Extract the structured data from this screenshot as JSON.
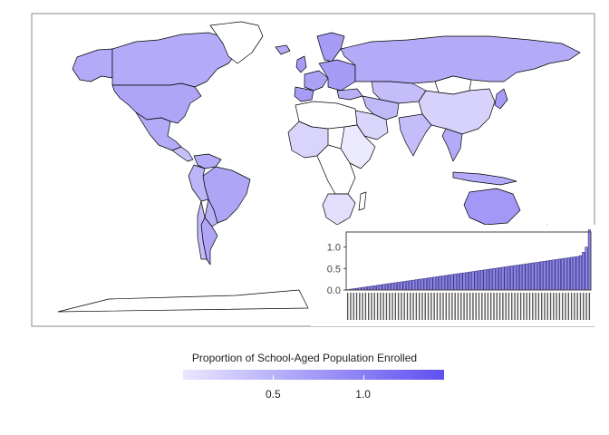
{
  "chart_data": [
    {
      "type": "choropleth-map",
      "title": "",
      "fill_scale_low": "#e9e7fd",
      "fill_scale_high": "#5f4ff2",
      "missing_fill": "#ffffff",
      "border_color": "#000000"
    },
    {
      "type": "bar",
      "title": "",
      "xlabel": "",
      "ylabel": "",
      "ylim": [
        0,
        1.35
      ],
      "yticks": [
        "0.0",
        "0.5",
        "1.0"
      ],
      "bar_fill": "#8d84e6",
      "bar_outline": "#1f1a6e",
      "sorted_ascending": true,
      "values": [
        0.01,
        0.02,
        0.03,
        0.04,
        0.05,
        0.06,
        0.07,
        0.08,
        0.09,
        0.1,
        0.11,
        0.12,
        0.13,
        0.14,
        0.15,
        0.16,
        0.17,
        0.18,
        0.19,
        0.2,
        0.21,
        0.22,
        0.23,
        0.24,
        0.25,
        0.26,
        0.27,
        0.28,
        0.29,
        0.3,
        0.31,
        0.32,
        0.33,
        0.34,
        0.35,
        0.36,
        0.37,
        0.38,
        0.39,
        0.4,
        0.41,
        0.42,
        0.43,
        0.44,
        0.45,
        0.46,
        0.47,
        0.48,
        0.49,
        0.5,
        0.51,
        0.52,
        0.53,
        0.54,
        0.55,
        0.56,
        0.57,
        0.58,
        0.59,
        0.6,
        0.61,
        0.62,
        0.63,
        0.64,
        0.65,
        0.66,
        0.67,
        0.68,
        0.69,
        0.7,
        0.71,
        0.72,
        0.73,
        0.74,
        0.75,
        0.76,
        0.77,
        0.78,
        0.8,
        0.88,
        1.0,
        1.4
      ]
    }
  ],
  "legend": {
    "title": "Proportion of School-Aged Population Enrolled",
    "range": [
      0.0,
      1.45
    ],
    "ticks": [
      {
        "label": "0.5",
        "value": 0.5
      },
      {
        "label": "1.0",
        "value": 1.0
      }
    ]
  }
}
